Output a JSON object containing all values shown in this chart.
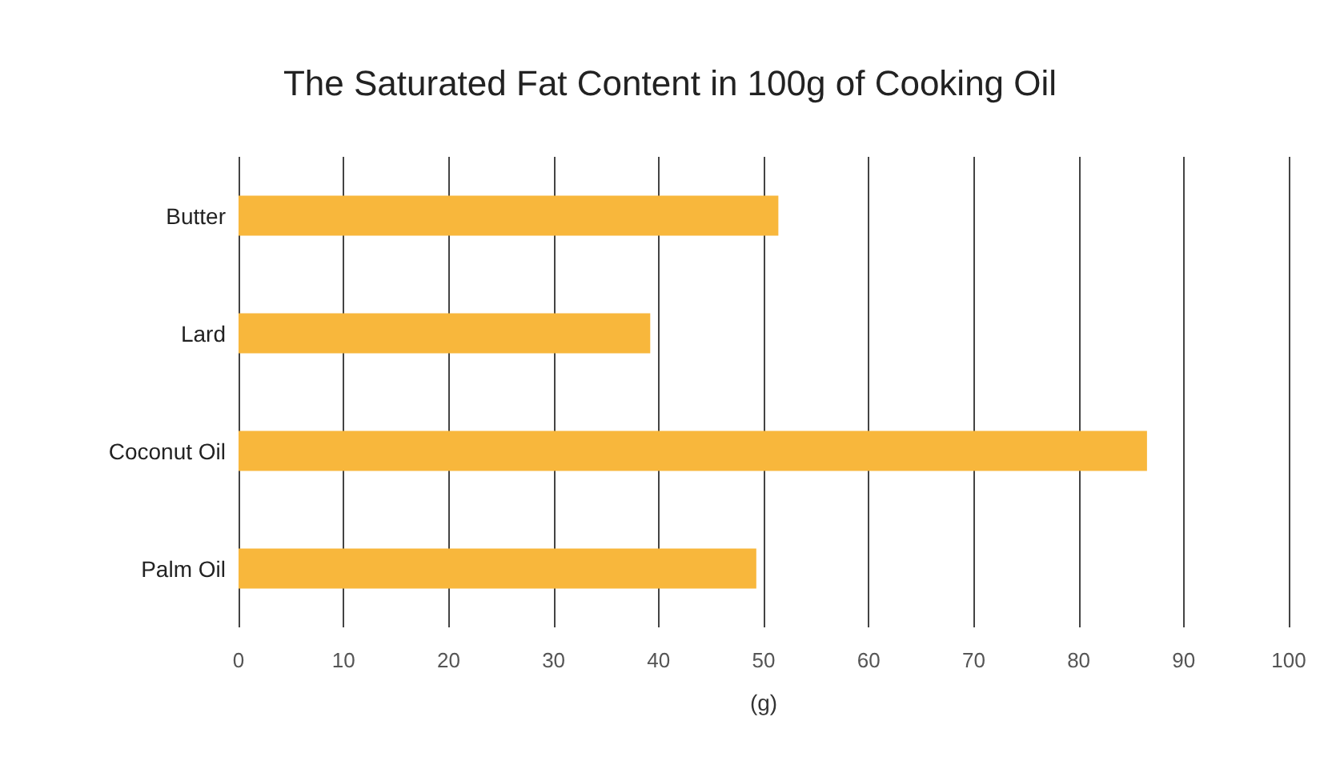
{
  "chart_data": {
    "type": "bar",
    "orientation": "horizontal",
    "title": "The Saturated Fat Content in 100g of Cooking Oil",
    "xlabel": "(g)",
    "categories": [
      "Butter",
      "Lard",
      "Coconut Oil",
      "Palm Oil"
    ],
    "values": [
      51.4,
      39.2,
      86.5,
      49.3
    ],
    "color": "#f8b73c",
    "xlim": [
      0,
      100
    ],
    "xticks": [
      0,
      10,
      20,
      30,
      40,
      50,
      60,
      70,
      80,
      90,
      100
    ],
    "grid": "x"
  }
}
